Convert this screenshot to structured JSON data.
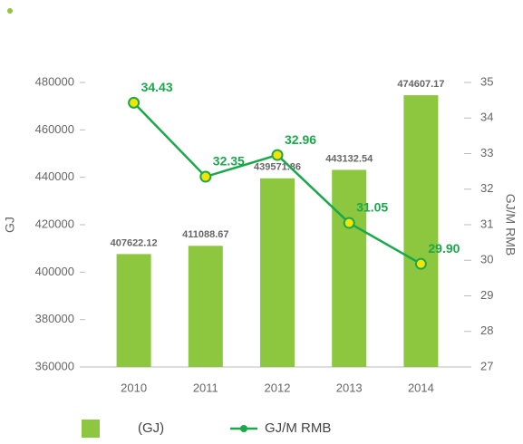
{
  "chart_data": {
    "type": "bar_line",
    "categories": [
      "2010",
      "2011",
      "2012",
      "2013",
      "2014"
    ],
    "series": [
      {
        "name": "(GJ)",
        "type": "bar",
        "color": "#8dc63f",
        "values": [
          407622.12,
          411088.67,
          439571.86,
          443132.54,
          474607.17
        ]
      },
      {
        "name": "GJ/M RMB",
        "type": "line",
        "axis": "y2",
        "color": "#1aa84a",
        "marker_color": "#f5e400",
        "values": [
          34.43,
          32.35,
          32.96,
          31.05,
          29.9
        ],
        "value_labels": [
          "34.43",
          "32.35",
          "32.96",
          "31.05",
          "29.90"
        ]
      }
    ],
    "ylabel": "GJ",
    "y2label": "GJ/M RMB",
    "ylim": [
      360000,
      480000
    ],
    "yticks": [
      360000,
      380000,
      400000,
      420000,
      440000,
      460000,
      480000
    ],
    "y2lim": [
      27,
      35
    ],
    "y2ticks": [
      27,
      28,
      29,
      30,
      31,
      32,
      33,
      34,
      35
    ],
    "legend": "bottom"
  }
}
